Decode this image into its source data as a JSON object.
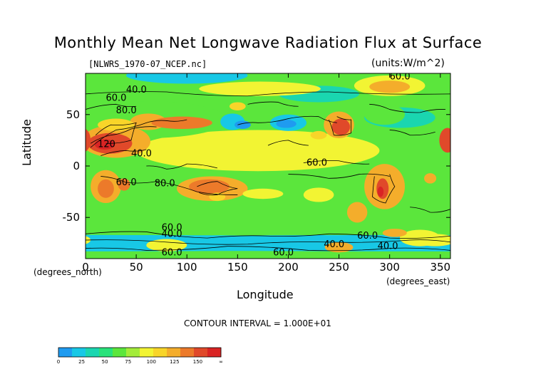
{
  "chart_data": {
    "type": "heatmap",
    "title": "Monthly Mean Net Longwave Radiation Flux at Surface",
    "subtitle": "[NLWRS_1970-07_NCEP.nc]",
    "units_label": "(units:W/m^2)",
    "xlabel": "Longitude",
    "xunits": "(degrees_east)",
    "ylabel": "Latitude",
    "yunits": "(degrees_north)",
    "xlim": [
      0,
      360
    ],
    "ylim": [
      -90,
      90
    ],
    "x_ticks": [
      "0",
      "50",
      "100",
      "150",
      "200",
      "250",
      "300",
      "350"
    ],
    "y_ticks": [
      "50",
      "0",
      "-50"
    ],
    "contour_interval_text": "CONTOUR INTERVAL = 1.000E+01",
    "contour_labels": [
      {
        "text": "40.0",
        "lon": 40,
        "lat": 74
      },
      {
        "text": "60.0",
        "lon": 20,
        "lat": 66
      },
      {
        "text": "80.0",
        "lon": 30,
        "lat": 54
      },
      {
        "text": "120",
        "lon": 12,
        "lat": 21
      },
      {
        "text": "40.0",
        "lon": 45,
        "lat": 12
      },
      {
        "text": "60.0",
        "lon": 30,
        "lat": -16
      },
      {
        "text": "80.0",
        "lon": 68,
        "lat": -17
      },
      {
        "text": "60.0",
        "lon": 218,
        "lat": 3
      },
      {
        "text": "60.0",
        "lon": 300,
        "lat": 87
      },
      {
        "text": "60.0",
        "lon": 75,
        "lat": -60
      },
      {
        "text": "40.0",
        "lon": 75,
        "lat": -66
      },
      {
        "text": "60.0",
        "lon": 75,
        "lat": -84
      },
      {
        "text": "60.0",
        "lon": 185,
        "lat": -84
      },
      {
        "text": "40.0",
        "lon": 235,
        "lat": -76
      },
      {
        "text": "60.0",
        "lon": 268,
        "lat": -68
      },
      {
        "text": "40.0",
        "lon": 288,
        "lat": -78
      }
    ],
    "colorbar": {
      "colors": [
        "#1f9bf0",
        "#18c8e6",
        "#1ad6b0",
        "#28e27a",
        "#5be63c",
        "#a3ec3a",
        "#f2f433",
        "#f8d529",
        "#f4ad2b",
        "#ec7a2a",
        "#e0492a",
        "#d92424"
      ],
      "labels": [
        "0",
        "25",
        "50",
        "75",
        "100",
        "125",
        "150",
        "∞"
      ]
    }
  }
}
